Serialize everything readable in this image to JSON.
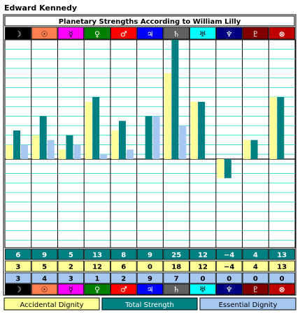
{
  "owner": "Edward Kennedy",
  "chart_data": {
    "type": "bar",
    "title": "Planetary Strengths According to William Lilly",
    "planets": [
      {
        "glyph": "☽",
        "name": "Moon",
        "bg": "#000000",
        "fg": "#ffffff"
      },
      {
        "glyph": "☉",
        "name": "Sun",
        "bg": "#ff7f50",
        "fg": "#000000"
      },
      {
        "glyph": "☿",
        "name": "Mercury",
        "bg": "#ff00ff",
        "fg": "#000000"
      },
      {
        "glyph": "♀",
        "name": "Venus",
        "bg": "#008000",
        "fg": "#ffffff"
      },
      {
        "glyph": "♂",
        "name": "Mars",
        "bg": "#ff0000",
        "fg": "#ffffff"
      },
      {
        "glyph": "♃",
        "name": "Jupiter",
        "bg": "#0000ff",
        "fg": "#ffffff"
      },
      {
        "glyph": "♄",
        "name": "Saturn",
        "bg": "#606060",
        "fg": "#ffffff"
      },
      {
        "glyph": "♅",
        "name": "Uranus",
        "bg": "#00ffff",
        "fg": "#000000"
      },
      {
        "glyph": "♆",
        "name": "Neptune",
        "bg": "#000080",
        "fg": "#ffffff"
      },
      {
        "glyph": "♇",
        "name": "Pluto",
        "bg": "#800000",
        "fg": "#ffffff"
      },
      {
        "glyph": "⊗",
        "name": "Part of Fortune",
        "bg": "#c00000",
        "fg": "#ffffff"
      }
    ],
    "series": [
      {
        "name": "Accidental Dignity",
        "color": "#ffff99",
        "values": [
          3,
          5,
          2,
          12,
          6,
          0,
          18,
          12,
          -4,
          4,
          13
        ]
      },
      {
        "name": "Total Strength",
        "color": "#008080",
        "values": [
          6,
          9,
          5,
          13,
          8,
          9,
          25,
          12,
          -4,
          4,
          13
        ]
      },
      {
        "name": "Essential Dignity",
        "color": "#a6c8f0",
        "values": [
          3,
          4,
          3,
          1,
          2,
          9,
          7,
          0,
          0,
          0,
          0
        ]
      }
    ],
    "ylim": [
      -25,
      25
    ],
    "grid": true
  }
}
